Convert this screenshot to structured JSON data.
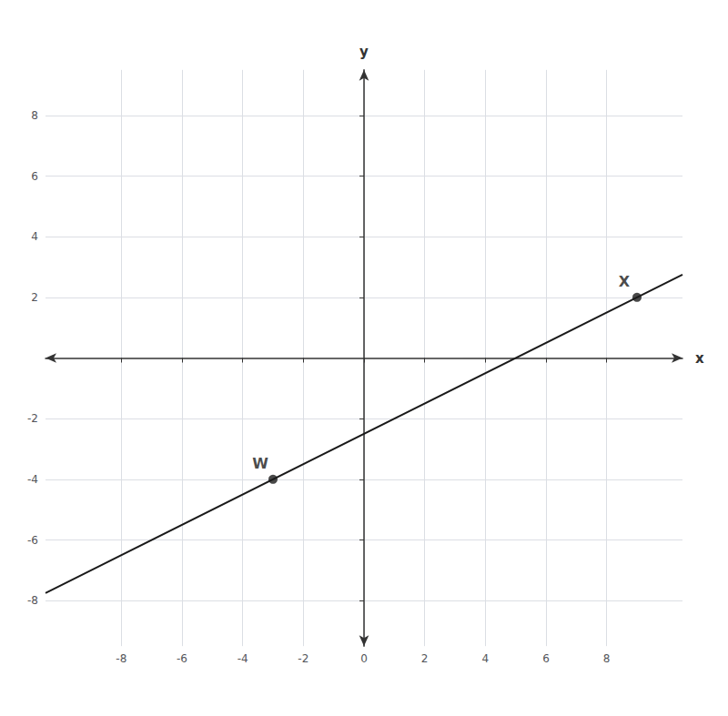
{
  "chart_data": {
    "type": "line",
    "xlabel": "x",
    "ylabel": "y",
    "xlim": [
      -10.5,
      10.5
    ],
    "ylim": [
      -9.5,
      9.5
    ],
    "xticks": [
      -8,
      -6,
      -4,
      -2,
      0,
      2,
      4,
      6,
      8
    ],
    "yticks": [
      -8,
      -6,
      -4,
      -2,
      2,
      4,
      6,
      8
    ],
    "grid": true,
    "series": [
      {
        "type": "line",
        "color": "#1a1a1a",
        "x": [
          -10.5,
          10.5
        ],
        "values": [
          -7.75,
          2.75
        ]
      },
      {
        "type": "scatter",
        "color": "#1a1a1a",
        "x": [
          -3,
          9
        ],
        "values": [
          -4,
          2
        ]
      }
    ],
    "annotations": [
      {
        "text": "W",
        "x": -3,
        "y": -4
      },
      {
        "text": "X",
        "x": 9,
        "y": 2
      }
    ]
  }
}
